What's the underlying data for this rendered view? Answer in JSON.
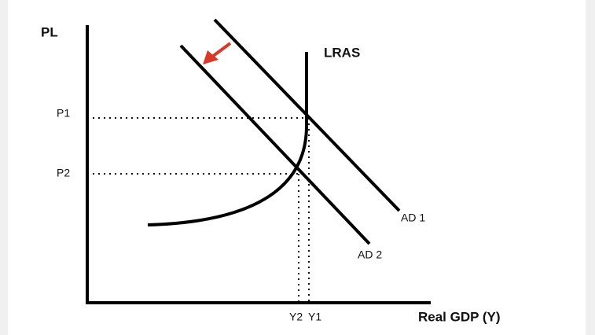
{
  "y_axis_label": "PL",
  "x_axis_label": "Real GDP (Y)",
  "price_levels": [
    "P1",
    "P2"
  ],
  "output_levels": [
    "Y2",
    "Y1"
  ],
  "curves": {
    "lras": "LRAS",
    "ad1": "AD 1",
    "ad2": "AD 2"
  }
}
